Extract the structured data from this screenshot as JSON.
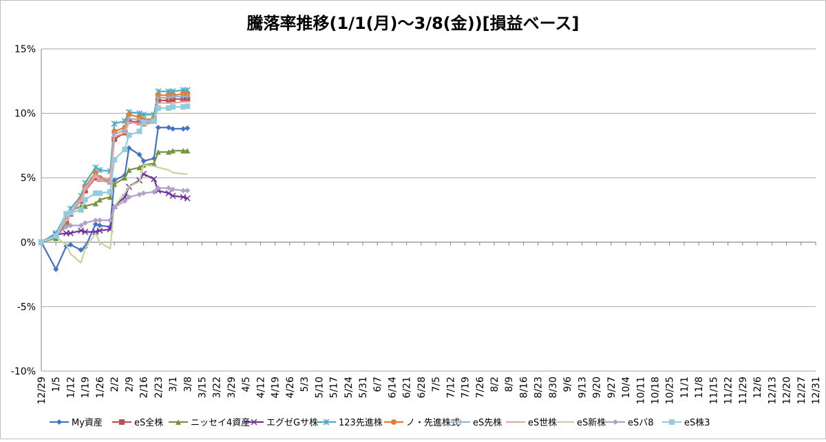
{
  "chart_data": {
    "type": "line",
    "title": "騰落率推移(1/1(月)～3/8(金))[損益ベース]",
    "xlabel": "",
    "ylabel": "",
    "ylim": [
      -10,
      15
    ],
    "yticks": [
      -10,
      -5,
      0,
      5,
      10,
      15
    ],
    "ytick_labels": [
      "-10%",
      "-5%",
      "0%",
      "5%",
      "10%",
      "15%"
    ],
    "grid": true,
    "legend_position": "bottom",
    "categories": [
      "12/29",
      "1/5",
      "1/12",
      "1/19",
      "1/26",
      "2/2",
      "2/9",
      "2/16",
      "2/23",
      "3/1",
      "3/8",
      "3/15",
      "3/22",
      "3/29",
      "4/5",
      "4/12",
      "4/19",
      "4/26",
      "5/3",
      "5/10",
      "5/17",
      "5/24",
      "5/31",
      "6/7",
      "6/14",
      "6/21",
      "6/28",
      "7/5",
      "7/12",
      "7/19",
      "7/26",
      "8/2",
      "8/9",
      "8/16",
      "8/23",
      "8/30",
      "9/6",
      "9/13",
      "9/20",
      "9/27",
      "10/4",
      "10/11",
      "10/18",
      "10/25",
      "11/1",
      "11/8",
      "11/15",
      "11/22",
      "11/29",
      "12/6",
      "12/13",
      "12/20",
      "12/27",
      "12/31"
    ],
    "x": [
      0,
      1,
      1.7143,
      2,
      2.7143,
      3,
      3.7143,
      4,
      4.7143,
      5,
      5.7143,
      6,
      6.7143,
      7,
      7.7143,
      8,
      8.7143,
      9,
      9.7143,
      10
    ],
    "series": [
      {
        "name": "My資産",
        "color": "#4472C4",
        "marker": "diamond",
        "values": [
          0,
          -2.1,
          -0.3,
          -0.2,
          -0.6,
          -0.4,
          1.4,
          1.3,
          1.2,
          4.8,
          5.2,
          7.3,
          6.8,
          6.3,
          6.5,
          8.9,
          8.9,
          8.8,
          8.8,
          8.85
        ]
      },
      {
        "name": "eS全株",
        "color": "#C0504D",
        "marker": "square",
        "values": [
          0,
          0.5,
          1.6,
          2.2,
          3.2,
          4.0,
          5.0,
          4.9,
          4.7,
          8.0,
          8.5,
          9.4,
          9.3,
          9.2,
          9.4,
          11.0,
          11.0,
          11.1,
          11.1,
          11.1
        ]
      },
      {
        "name": "ニッセイ4資産",
        "color": "#77933C",
        "marker": "triangle",
        "values": [
          0,
          0.3,
          1.5,
          2.4,
          2.8,
          2.8,
          3.0,
          3.3,
          3.5,
          4.5,
          5.0,
          5.6,
          5.8,
          6.0,
          6.1,
          7.0,
          7.0,
          7.1,
          7.1,
          7.1
        ]
      },
      {
        "name": "エグゼGサ株",
        "color": "#7030A0",
        "marker": "x",
        "values": [
          0,
          0.6,
          0.7,
          0.7,
          0.9,
          0.8,
          0.8,
          0.9,
          1.0,
          2.8,
          3.5,
          4.3,
          4.8,
          5.3,
          4.9,
          4.0,
          3.8,
          3.6,
          3.5,
          3.4
        ]
      },
      {
        "name": "123先進株",
        "color": "#4BACC6",
        "marker": "star",
        "values": [
          0,
          0.7,
          2.2,
          2.6,
          3.6,
          4.6,
          5.8,
          5.6,
          5.5,
          9.2,
          9.4,
          10.1,
          10.0,
          9.9,
          9.9,
          11.7,
          11.7,
          11.7,
          11.8,
          11.8
        ]
      },
      {
        "name": "ノ・先進株式",
        "color": "#E67C30",
        "marker": "circle",
        "values": [
          0,
          0.5,
          1.8,
          2.3,
          3.4,
          4.3,
          5.4,
          5.0,
          4.8,
          8.6,
          8.9,
          9.9,
          9.7,
          9.5,
          9.6,
          11.4,
          11.4,
          11.4,
          11.5,
          11.5
        ]
      },
      {
        "name": "eS先株",
        "color": "#95B3D7",
        "marker": "plus",
        "values": [
          0,
          0.5,
          1.8,
          2.3,
          3.3,
          4.2,
          5.2,
          4.9,
          4.8,
          8.4,
          8.7,
          9.6,
          9.5,
          9.4,
          9.5,
          11.2,
          11.2,
          11.3,
          11.3,
          11.3
        ]
      },
      {
        "name": "eS世株",
        "color": "#E6A7A4",
        "marker": "dash",
        "values": [
          0,
          0.5,
          1.7,
          2.2,
          3.2,
          4.1,
          5.1,
          4.8,
          4.6,
          8.2,
          8.5,
          9.3,
          9.2,
          9.1,
          9.3,
          10.8,
          10.8,
          10.8,
          10.9,
          10.9
        ]
      },
      {
        "name": "eS新株",
        "color": "#C3D69B",
        "marker": "none",
        "values": [
          0,
          0.4,
          -0.2,
          -0.9,
          -1.6,
          -0.5,
          0.7,
          0.0,
          -0.5,
          2.8,
          3.8,
          4.3,
          4.7,
          6.0,
          5.9,
          5.8,
          5.6,
          5.4,
          5.3,
          5.3
        ]
      },
      {
        "name": "eSバ8",
        "color": "#B1A0C7",
        "marker": "diamond",
        "values": [
          0,
          0.5,
          1.2,
          1.3,
          1.3,
          1.5,
          1.7,
          1.7,
          1.7,
          2.7,
          3.2,
          3.5,
          3.7,
          3.8,
          3.9,
          4.2,
          4.2,
          4.1,
          4.0,
          4.0
        ]
      },
      {
        "name": "eS株3",
        "color": "#93CDDD",
        "marker": "square",
        "values": [
          0,
          0.5,
          2.2,
          2.3,
          2.5,
          3.3,
          3.8,
          3.8,
          3.9,
          6.4,
          7.2,
          8.3,
          8.6,
          9.3,
          9.4,
          10.4,
          10.4,
          10.5,
          10.5,
          10.55
        ]
      }
    ]
  }
}
